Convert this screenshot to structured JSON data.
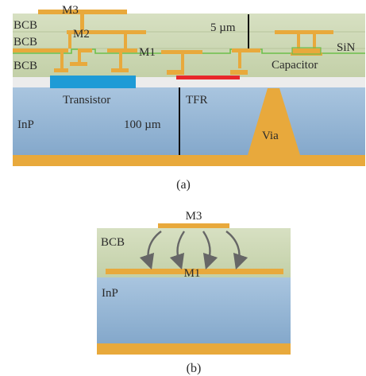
{
  "figure_a": {
    "layers": {
      "bcb_1": "BCB",
      "bcb_2": "BCB",
      "bcb_3": "BCB",
      "sin": "SiN",
      "inp": "InP"
    },
    "metals": {
      "m1": "M1",
      "m2": "M2",
      "m3": "M3"
    },
    "components": {
      "capacitor": "Capacitor",
      "transistor": "Transistor",
      "tfr": "TFR",
      "via": "Via"
    },
    "dimensions": {
      "bcb_thickness": "5 µm",
      "inp_thickness": "100 µm"
    },
    "caption": "(a)"
  },
  "figure_b": {
    "metals": {
      "m3": "M3",
      "m1": "M1"
    },
    "layers": {
      "bcb": "BCB",
      "inp": "InP"
    },
    "caption": "(b)"
  },
  "colors": {
    "bcb": "#c9d6b0",
    "inp": "#8fb2d2",
    "metal": "#e8a93c",
    "sin": "#6dbf4a",
    "transistor": "#1e9bd6",
    "tfr": "#e8282b",
    "arrow": "#666666"
  }
}
